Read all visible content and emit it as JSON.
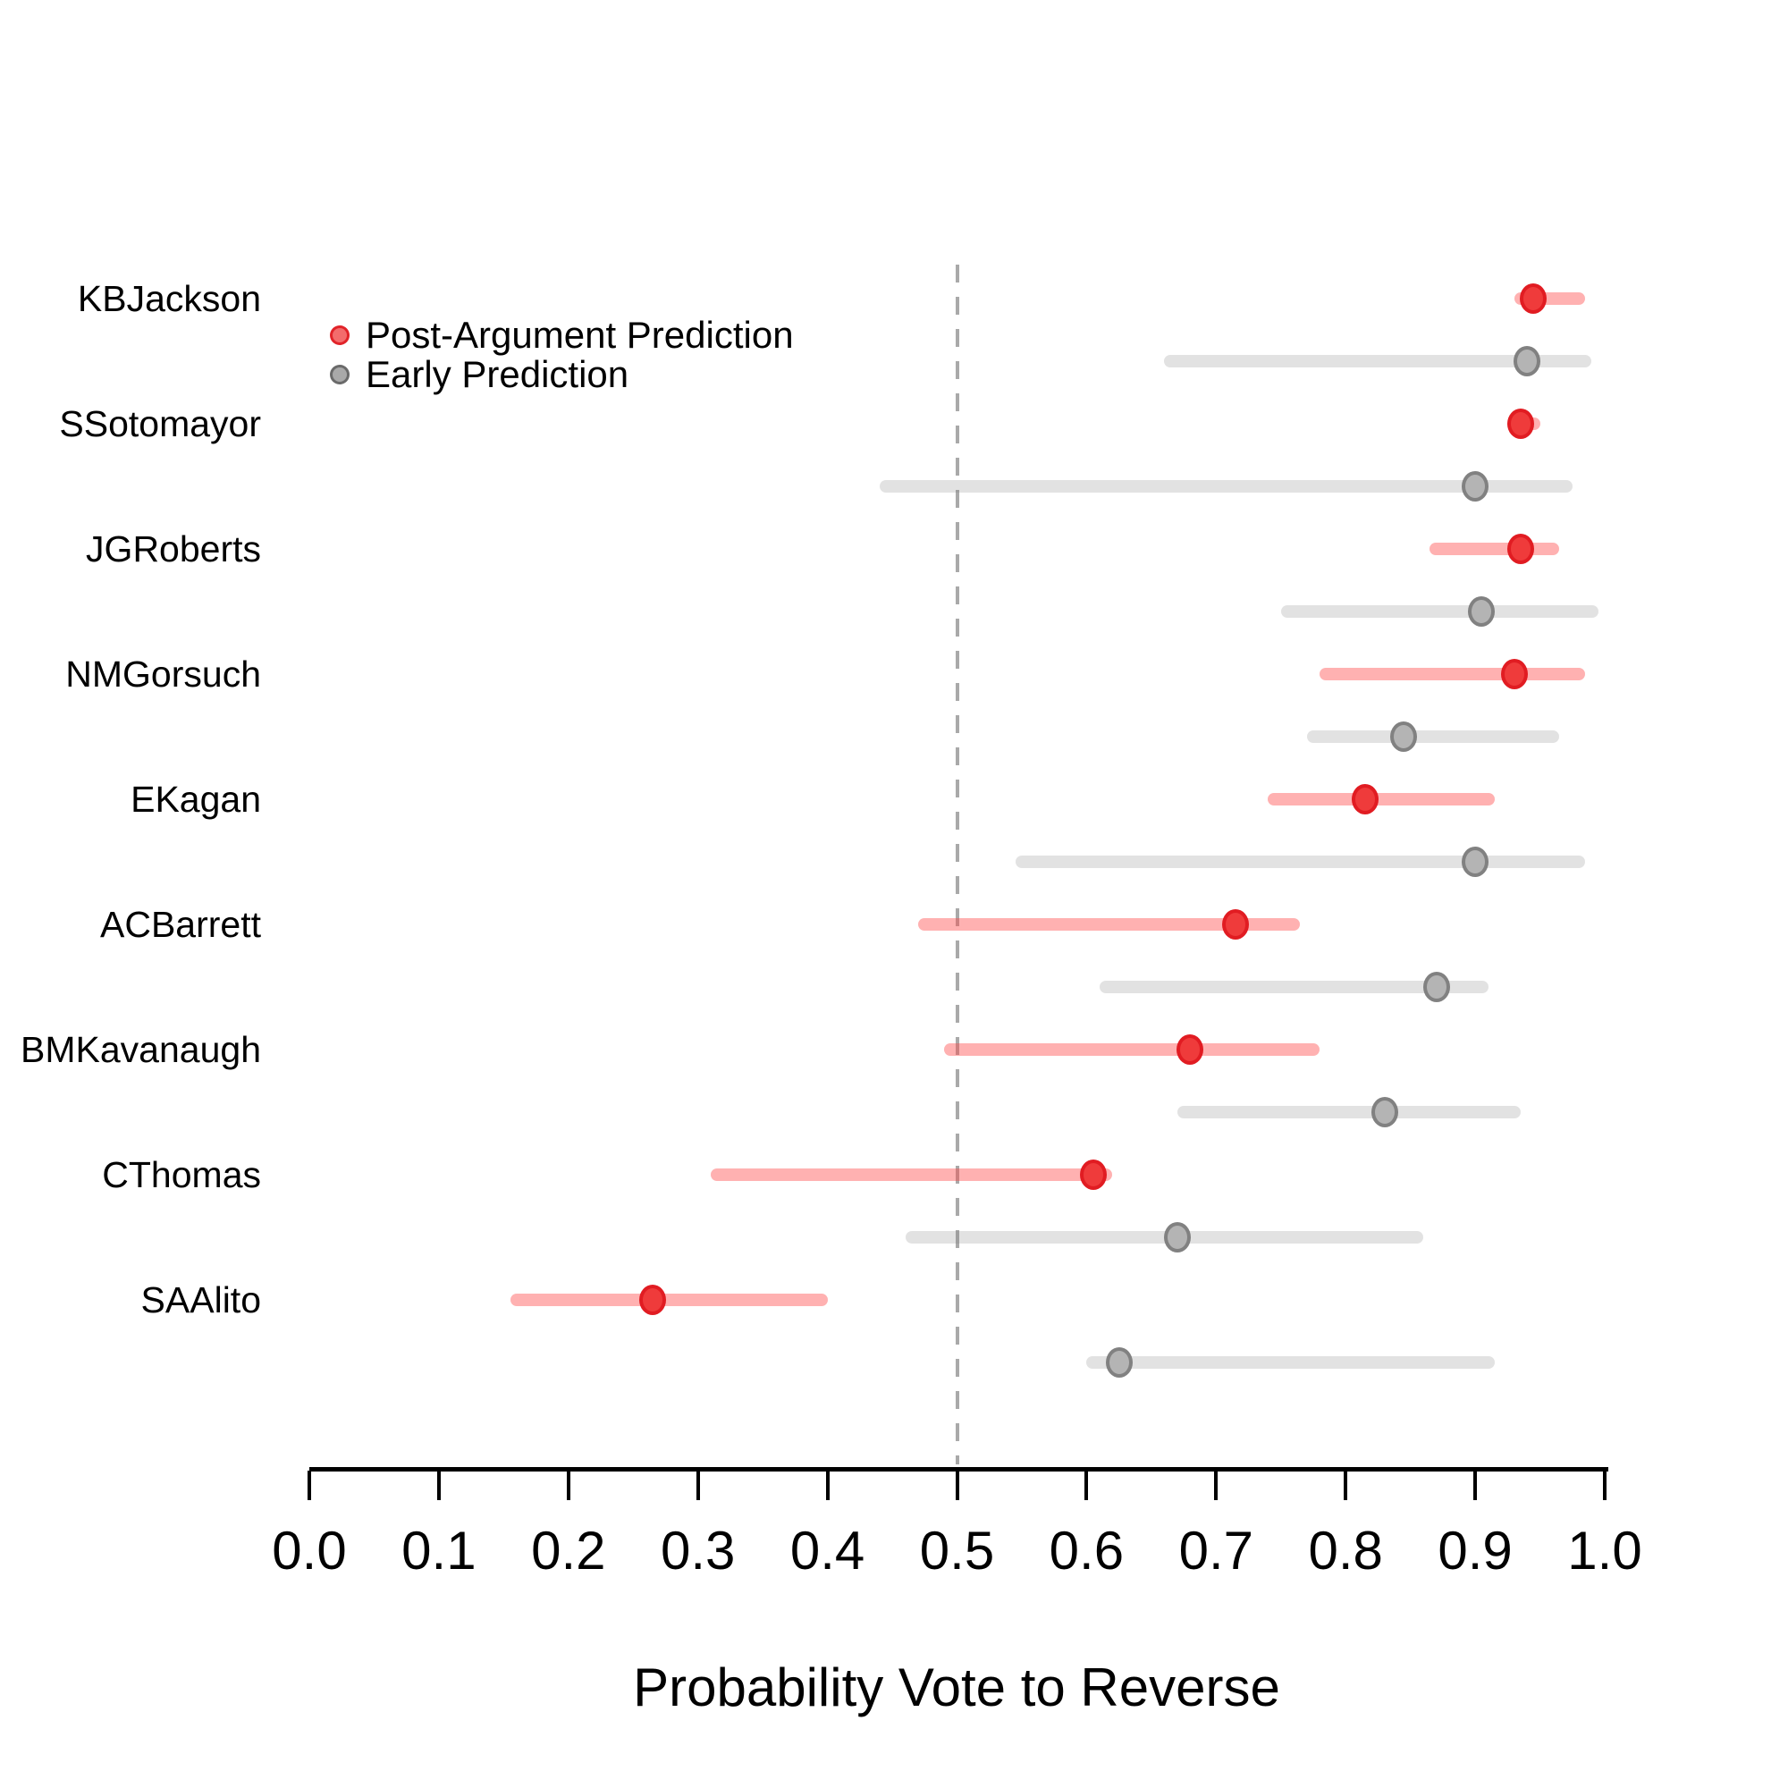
{
  "chart_data": {
    "type": "scatter",
    "subtype": "dot-and-interval (forest plot)",
    "title": "",
    "xlabel": "Probability Vote to Reverse",
    "ylabel": "",
    "xlim": [
      0.0,
      1.0
    ],
    "grid": false,
    "reference_line_x": 0.5,
    "x_ticks": [
      0.0,
      0.1,
      0.2,
      0.3,
      0.4,
      0.5,
      0.6,
      0.7,
      0.8,
      0.9,
      1.0
    ],
    "x_tick_labels": [
      "0.0",
      "0.1",
      "0.2",
      "0.3",
      "0.4",
      "0.5",
      "0.6",
      "0.7",
      "0.8",
      "0.9",
      "1.0"
    ],
    "legend_position": "top-left",
    "legend": [
      {
        "label": "Post-Argument Prediction",
        "color": "#ef3b3b"
      },
      {
        "label": "Early Prediction",
        "color": "#8c8c8c"
      }
    ],
    "series_note": "Each justice has two horizontal interval rows: Post-Argument Prediction (red, upper) and Early Prediction (gray, lower). est = dot, lo/hi = interval ends.",
    "justices": [
      {
        "name": "KBJackson",
        "post": {
          "est": 0.945,
          "lo": 0.93,
          "hi": 0.985
        },
        "early": {
          "est": 0.94,
          "lo": 0.66,
          "hi": 0.99
        }
      },
      {
        "name": "SSotomayor",
        "post": {
          "est": 0.935,
          "lo": 0.925,
          "hi": 0.95
        },
        "early": {
          "est": 0.9,
          "lo": 0.44,
          "hi": 0.975
        }
      },
      {
        "name": "JGRoberts",
        "post": {
          "est": 0.935,
          "lo": 0.865,
          "hi": 0.965
        },
        "early": {
          "est": 0.905,
          "lo": 0.75,
          "hi": 0.995
        }
      },
      {
        "name": "NMGorsuch",
        "post": {
          "est": 0.93,
          "lo": 0.78,
          "hi": 0.985
        },
        "early": {
          "est": 0.845,
          "lo": 0.77,
          "hi": 0.965
        }
      },
      {
        "name": "EKagan",
        "post": {
          "est": 0.815,
          "lo": 0.74,
          "hi": 0.915
        },
        "early": {
          "est": 0.9,
          "lo": 0.545,
          "hi": 0.985
        }
      },
      {
        "name": "ACBarrett",
        "post": {
          "est": 0.715,
          "lo": 0.47,
          "hi": 0.765
        },
        "early": {
          "est": 0.87,
          "lo": 0.61,
          "hi": 0.91
        }
      },
      {
        "name": "BMKavanaugh",
        "post": {
          "est": 0.68,
          "lo": 0.49,
          "hi": 0.78
        },
        "early": {
          "est": 0.83,
          "lo": 0.67,
          "hi": 0.935
        }
      },
      {
        "name": "CThomas",
        "post": {
          "est": 0.605,
          "lo": 0.31,
          "hi": 0.62
        },
        "early": {
          "est": 0.67,
          "lo": 0.46,
          "hi": 0.86
        }
      },
      {
        "name": "SAAlito",
        "post": {
          "est": 0.265,
          "lo": 0.155,
          "hi": 0.4
        },
        "early": {
          "est": 0.625,
          "lo": 0.6,
          "hi": 0.915
        }
      }
    ],
    "colors": {
      "post_dot": "#ef3b3b",
      "post_interval": "#ffb1b1",
      "early_dot": "#b4b4b4",
      "early_interval": "#e0e0e0",
      "reference_line": "#a9a9a9",
      "axis": "#000000"
    }
  }
}
